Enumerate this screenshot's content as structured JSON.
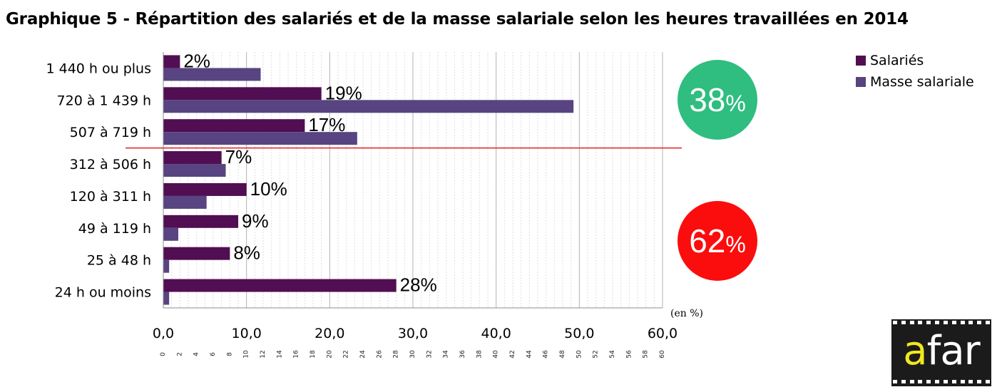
{
  "chart_data": {
    "type": "bar",
    "orientation": "horizontal",
    "title": "Graphique 5 - Répartition des salariés et de la masse salariale selon les heures travaillées en 2014",
    "categories": [
      "1 440 h ou plus",
      "720 à 1 439 h",
      "507 à 719 h",
      "312 à 506 h",
      "120 à 311 h",
      "49 à 119 h",
      "25 à 48 h",
      "24 h ou moins"
    ],
    "series": [
      {
        "name": "Salariés",
        "color": "#520e52",
        "values": [
          2,
          19,
          17,
          7,
          10,
          9,
          8,
          28
        ]
      },
      {
        "name": "Masse salariale",
        "color": "#574480",
        "values": [
          11.7,
          49.3,
          23.3,
          7.5,
          5.2,
          1.8,
          0.7,
          0.7
        ]
      }
    ],
    "data_labels": [
      "2%",
      "19%",
      "17%",
      "7%",
      "10%",
      "9%",
      "8%",
      "28%"
    ],
    "xlim": [
      0,
      60
    ],
    "major_ticks": [
      "0,0",
      "10,0",
      "20,0",
      "30,0",
      "40,0",
      "50,0",
      "60,0"
    ],
    "minor_ticks": [
      0,
      2,
      4,
      6,
      8,
      10,
      12,
      14,
      16,
      18,
      20,
      22,
      24,
      26,
      28,
      30,
      32,
      34,
      36,
      38,
      40,
      42,
      44,
      46,
      48,
      50,
      52,
      54,
      56,
      58,
      60
    ],
    "unit": "(en %)",
    "legend_position": "top-right",
    "divider_after_category": "507 à 719 h",
    "divider_color": "#e0211b"
  },
  "annotations": {
    "top_share": {
      "value": "38",
      "unit": "%",
      "color": "#2fbd80"
    },
    "bottom_share": {
      "value": "62",
      "unit": "%",
      "color": "#fc0d0d"
    }
  },
  "logo": {
    "letter_a": "a",
    "rest": "far"
  }
}
